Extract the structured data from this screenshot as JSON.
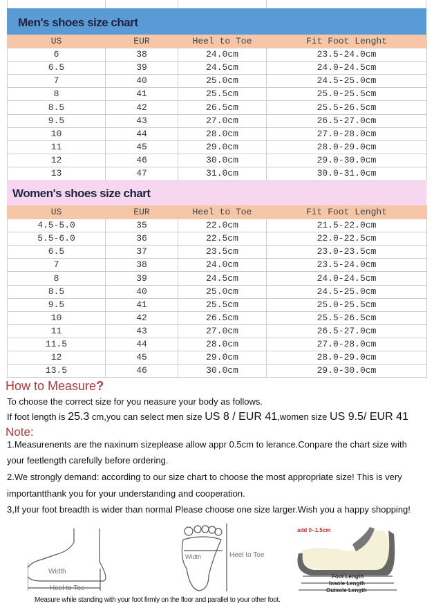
{
  "men": {
    "title": "Men's shoes size chart",
    "headers": [
      "US",
      "EUR",
      "Heel to Toe",
      "Fit Foot Lenght"
    ],
    "rows": [
      [
        "6",
        "38",
        "24.0cm",
        "23.5-24.0cm"
      ],
      [
        "6.5",
        "39",
        "24.5cm",
        "24.0-24.5cm"
      ],
      [
        "7",
        "40",
        "25.0cm",
        "24.5-25.0cm"
      ],
      [
        "8",
        "41",
        "25.5cm",
        "25.0-25.5cm"
      ],
      [
        "8.5",
        "42",
        "26.5cm",
        "25.5-26.5cm"
      ],
      [
        "9.5",
        "43",
        "27.0cm",
        "26.5-27.0cm"
      ],
      [
        "10",
        "44",
        "28.0cm",
        "27.0-28.0cm"
      ],
      [
        "11",
        "45",
        "29.0cm",
        "28.0-29.0cm"
      ],
      [
        "12",
        "46",
        "30.0cm",
        "29.0-30.0cm"
      ],
      [
        "13",
        "47",
        "31.0cm",
        "30.0-31.0cm"
      ]
    ],
    "color": "#5b9bd5"
  },
  "women": {
    "title": "Women's  shoes size chart",
    "headers": [
      "US",
      "EUR",
      "Heel to Toe",
      "Fit Foot Lenght"
    ],
    "rows": [
      [
        "4.5-5.0",
        "35",
        "22.0cm",
        "21.5-22.0cm"
      ],
      [
        "5.5-6.0",
        "36",
        "22.5cm",
        "22.0-22.5cm"
      ],
      [
        "6.5",
        "37",
        "23.5cm",
        "23.0-23.5cm"
      ],
      [
        "7",
        "38",
        "24.0cm",
        "23.5-24.0cm"
      ],
      [
        "8",
        "39",
        "24.5cm",
        "24.0-24.5cm"
      ],
      [
        "8.5",
        "40",
        "25.0cm",
        "24.5-25.0cm"
      ],
      [
        "9.5",
        "41",
        "25.5cm",
        "25.0-25.5cm"
      ],
      [
        "10",
        "42",
        "26.5cm",
        "25.5-26.5cm"
      ],
      [
        "11",
        "43",
        "27.0cm",
        "26.5-27.0cm"
      ],
      [
        "11.5",
        "44",
        "28.0cm",
        "27.0-28.0cm"
      ],
      [
        "12",
        "45",
        "29.0cm",
        "28.0-29.0cm"
      ],
      [
        "13.5",
        "46",
        "30.0cm",
        "29.0-30.0cm"
      ]
    ],
    "color": "#f7d7ef"
  },
  "header_row_color": "#f6c6a8",
  "measure": {
    "title": "How to Measure",
    "title_mark": "?",
    "intro": "To choose the correct size for you neasure your body as follows.",
    "example": {
      "p1": "If foot length is ",
      "v1": "25.3",
      "p2": " cm,you can select men size ",
      "v2": "US 8 / EUR 41",
      "p3": ",women size ",
      "v3": "US 9.5/ EUR 41"
    }
  },
  "note": {
    "title": "Note:",
    "lines": [
      "1.Measurenents are the naxinum sizeplease allow appr 0.5cm to lerance.Conpare the chart size with",
      " your feetlength carefully before ordering.",
      "2.We strongly demand: according to our size chart to choose the most appropriate size! This is very",
      "importantthank you for your understanding and cooperation.",
      "3,If your foot breadth is wider than normal Please choose one size larger.Wish you a happy shopping!"
    ]
  },
  "diagrams": {
    "side_width": "Width",
    "side_length": "Heel to Toe",
    "top_width": "Width",
    "top_length": "Heel to Toe",
    "add": "add 0~1.5cm",
    "foot_length": "Foot Length",
    "insole_length": "Insole Length",
    "outsole_length": "Outsole Length",
    "caption": "Measure while standing with your foot firmly on the floor and parallel to your other foot."
  }
}
